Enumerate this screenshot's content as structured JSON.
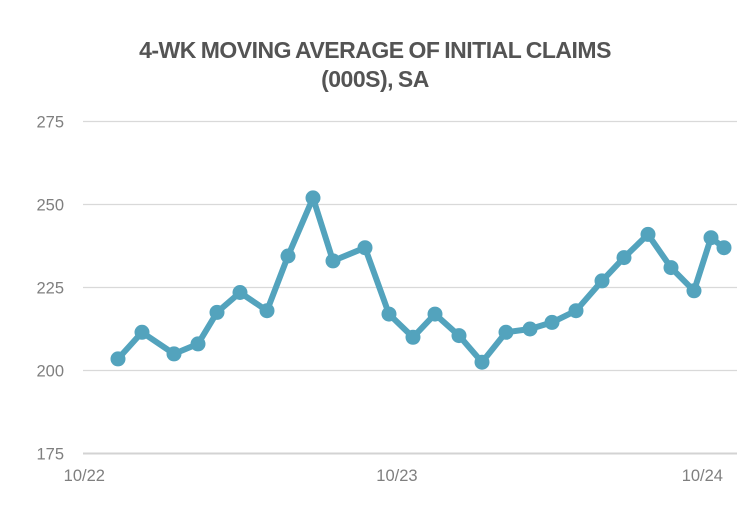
{
  "chart_data": {
    "type": "line",
    "title": "4-WK MOVING AVERAGE OF INITIAL CLAIMS (000S), SA",
    "title_lines": [
      "4-WK MOVING AVERAGE OF INITIAL CLAIMS",
      "(000S), SA"
    ],
    "xlabel": "",
    "ylabel": "",
    "ylim": [
      175,
      275
    ],
    "yticks": [
      "175",
      "200",
      "225",
      "250",
      "275"
    ],
    "grid": true,
    "legend": "none",
    "x_ticks": [
      {
        "label": "10/22",
        "pos": 0.002
      },
      {
        "label": "10/23",
        "pos": 0.48
      },
      {
        "label": "10/24",
        "pos": 0.947
      }
    ],
    "series": [
      {
        "name": "4-wk moving average of initial claims (000s), SA",
        "points": [
          {
            "x": 0.0535,
            "y": 203.5
          },
          {
            "x": 0.0902,
            "y": 211.5
          },
          {
            "x": 0.1391,
            "y": 205
          },
          {
            "x": 0.1758,
            "y": 208
          },
          {
            "x": 0.2049,
            "y": 217.5
          },
          {
            "x": 0.2401,
            "y": 223.5
          },
          {
            "x": 0.2813,
            "y": 218
          },
          {
            "x": 0.3135,
            "y": 234.5
          },
          {
            "x": 0.3517,
            "y": 252
          },
          {
            "x": 0.3823,
            "y": 233
          },
          {
            "x": 0.4312,
            "y": 237
          },
          {
            "x": 0.4679,
            "y": 217
          },
          {
            "x": 0.5046,
            "y": 210
          },
          {
            "x": 0.5382,
            "y": 217
          },
          {
            "x": 0.5749,
            "y": 210.5
          },
          {
            "x": 0.6101,
            "y": 202.5
          },
          {
            "x": 0.6468,
            "y": 211.5
          },
          {
            "x": 0.6835,
            "y": 212.5
          },
          {
            "x": 0.7171,
            "y": 214.5
          },
          {
            "x": 0.7538,
            "y": 218
          },
          {
            "x": 0.7936,
            "y": 227
          },
          {
            "x": 0.8272,
            "y": 234
          },
          {
            "x": 0.8639,
            "y": 241
          },
          {
            "x": 0.8991,
            "y": 231
          },
          {
            "x": 0.9343,
            "y": 224
          },
          {
            "x": 0.9602,
            "y": 240
          },
          {
            "x": 0.9801,
            "y": 237
          }
        ]
      }
    ],
    "colors": {
      "line": "#53A3BD",
      "marker": "#53A3BD",
      "title_text": "#545454",
      "axis_text": "#7F7F7F",
      "gridline": "#D9D9D9",
      "axis_line": "#D3D3D3",
      "background": "#FFFFFF"
    }
  }
}
